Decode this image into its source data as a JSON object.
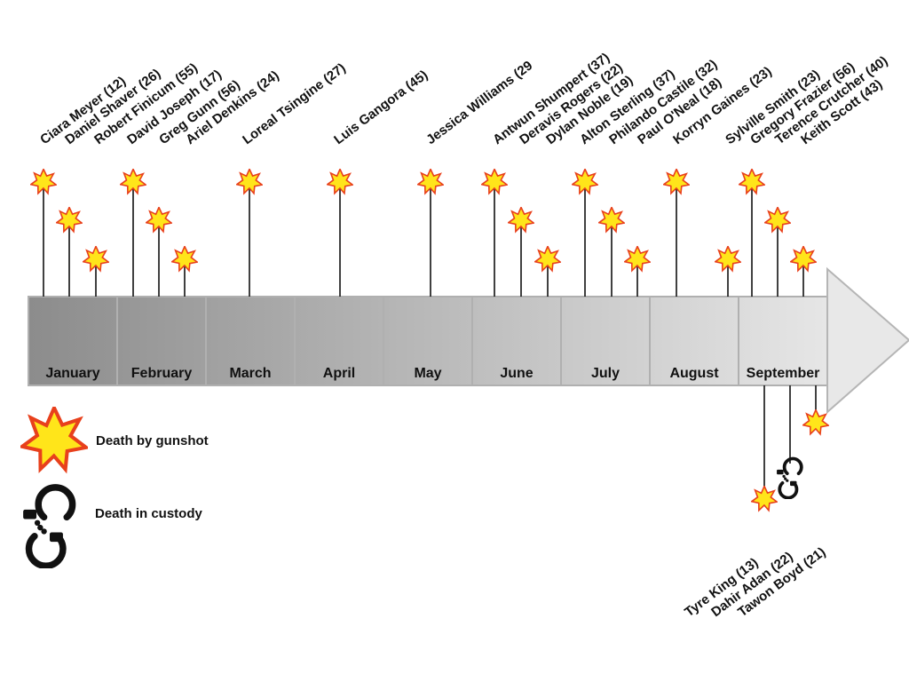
{
  "months": [
    "January",
    "February",
    "March",
    "April",
    "May",
    "June",
    "July",
    "August",
    "September"
  ],
  "colors": {
    "star_fill": "#ffe51a",
    "star_stroke": "#e8401c",
    "month_start": "#8c8c8c",
    "month_end": "#e6e6e6",
    "arrow_fill": "#e8e8e8",
    "arrow_stroke": "#b5b5b5",
    "line": "#111111"
  },
  "events_above": [
    {
      "name": "Ciara Meyer (12)",
      "type": "gunshot"
    },
    {
      "name": "Daniel Shaver (26)",
      "type": "gunshot"
    },
    {
      "name": "Robert Finicum (55)",
      "type": "gunshot"
    },
    {
      "name": "David Joseph (17)",
      "type": "gunshot"
    },
    {
      "name": "Greg Gunn (56)",
      "type": "gunshot"
    },
    {
      "name": "Ariel Denkins (24)",
      "type": "gunshot"
    },
    {
      "name": "Loreal Tsingine (27)",
      "type": "gunshot"
    },
    {
      "name": "Luis Gangora (45)",
      "type": "gunshot"
    },
    {
      "name": "Jessica Williams (29",
      "type": "gunshot"
    },
    {
      "name": "Antwun Shumpert (37)",
      "type": "gunshot"
    },
    {
      "name": "Deravis Rogers (22)",
      "type": "gunshot"
    },
    {
      "name": "Dylan Noble (19)",
      "type": "gunshot"
    },
    {
      "name": "Alton Sterling (37)",
      "type": "gunshot"
    },
    {
      "name": "Philando Castile (32)",
      "type": "gunshot"
    },
    {
      "name": "Paul O'Neal (18)",
      "type": "gunshot"
    },
    {
      "name": "Korryn Gaines (23)",
      "type": "gunshot"
    },
    {
      "name": "Sylville Smith (23)",
      "type": "gunshot"
    },
    {
      "name": "Gregory Frazier (56)",
      "type": "gunshot"
    },
    {
      "name": "Terence Crutcher (40)",
      "type": "gunshot"
    },
    {
      "name": "Keith Scott (43)",
      "type": "gunshot"
    }
  ],
  "events_below": [
    {
      "name": "Tyre King (13)",
      "type": "gunshot"
    },
    {
      "name": "Dahir Adan (22)",
      "type": "custody"
    },
    {
      "name": "Tawon Boyd (21)",
      "type": "gunshot"
    }
  ],
  "legend": {
    "gunshot": "Death by gunshot",
    "custody": "Death in custody"
  }
}
